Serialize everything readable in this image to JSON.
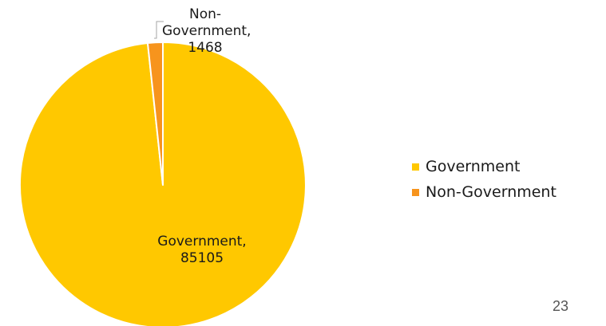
{
  "chart_data": {
    "type": "pie",
    "categories": [
      "Government",
      "Non-Government"
    ],
    "values": [
      85105,
      1468
    ],
    "colors": [
      "#FFC800",
      "#F7941D"
    ],
    "data_labels": [
      "Government,\n85105",
      "Non-\nGovernment,\n1468"
    ],
    "legend": {
      "entries": [
        "Government",
        "Non-Government"
      ],
      "placement": "right"
    }
  },
  "page_number": "23"
}
